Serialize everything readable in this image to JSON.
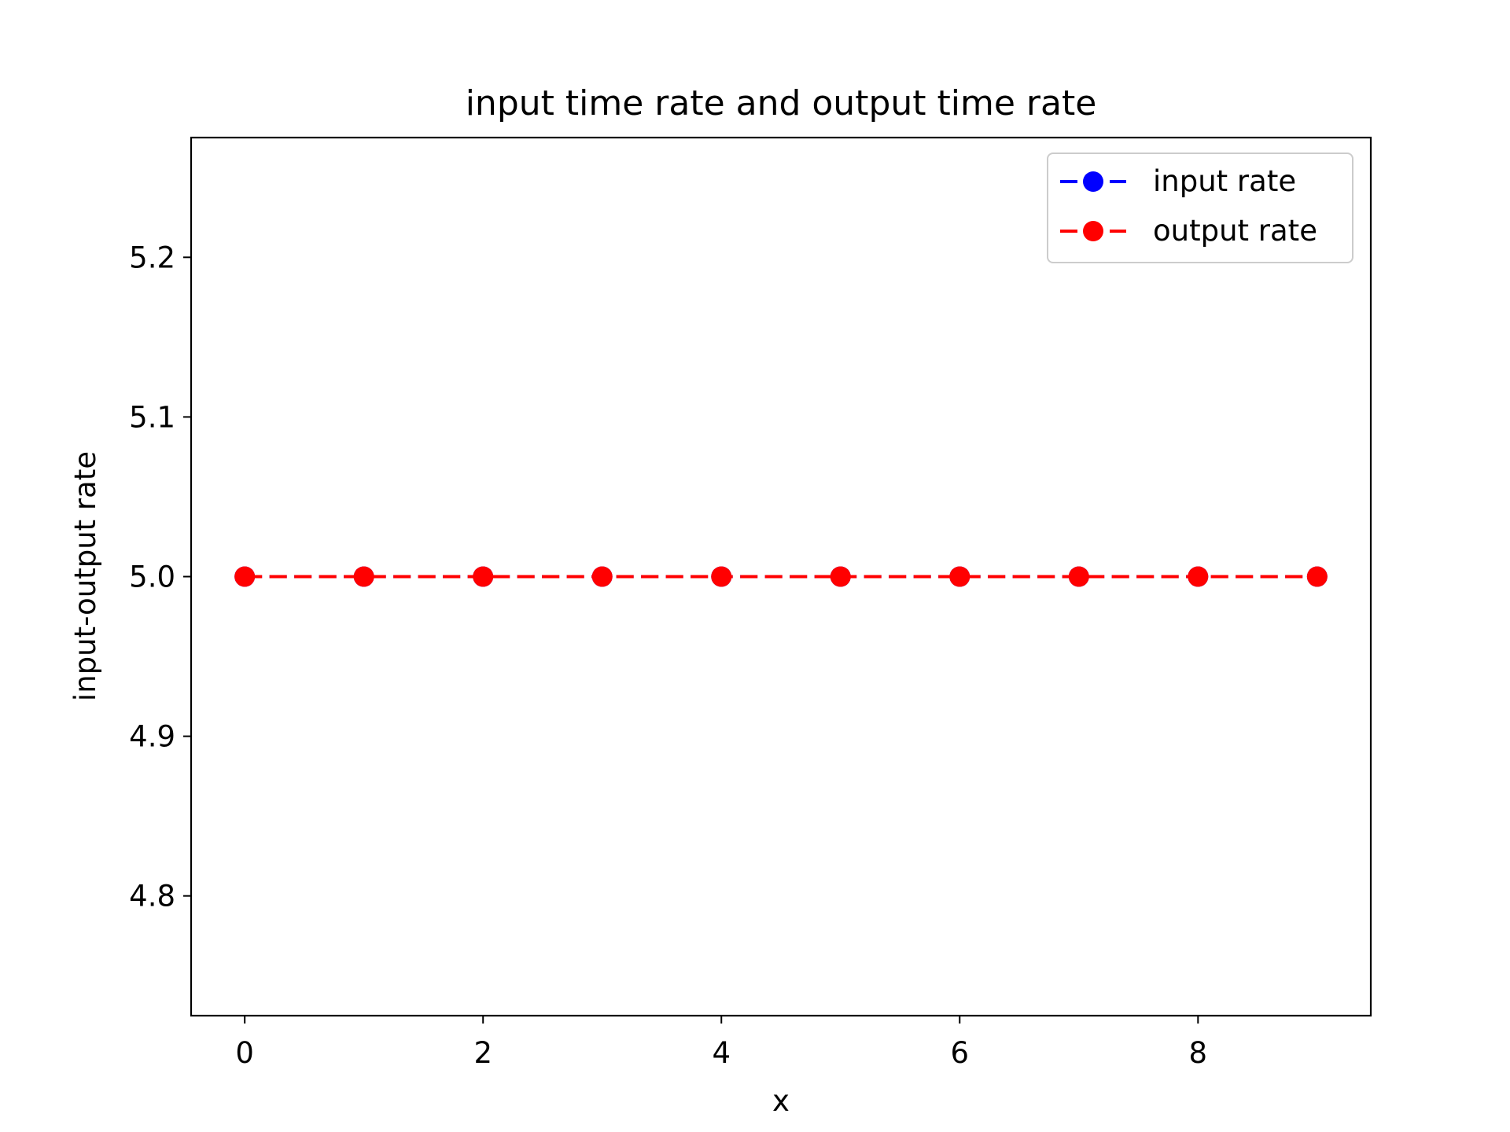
{
  "chart_data": {
    "type": "line",
    "title": "input time rate and output time rate",
    "xlabel": "x",
    "ylabel": "input-output rate",
    "xlim": [
      -0.45,
      9.45
    ],
    "ylim": [
      4.725,
      5.275
    ],
    "xticks": [
      0,
      2,
      4,
      6,
      8
    ],
    "xtick_labels": [
      "0",
      "2",
      "4",
      "6",
      "8"
    ],
    "yticks": [
      4.8,
      4.9,
      5.0,
      5.1,
      5.2
    ],
    "ytick_labels": [
      "4.8",
      "4.9",
      "5.0",
      "5.1",
      "5.2"
    ],
    "grid": false,
    "legend_position": "top-right",
    "x": [
      0,
      1,
      2,
      3,
      4,
      5,
      6,
      7,
      8,
      9
    ],
    "series": [
      {
        "name": "input rate",
        "values": [
          5.0,
          5.0,
          5.0,
          5.0,
          5.0,
          5.0,
          5.0,
          5.0,
          5.0,
          5.0
        ],
        "color": "#0000ff",
        "linestyle": "dashed",
        "marker": "circle"
      },
      {
        "name": "output rate",
        "values": [
          5.0,
          5.0,
          5.0,
          5.0,
          5.0,
          5.0,
          5.0,
          5.0,
          5.0,
          5.0
        ],
        "color": "#ff0000",
        "linestyle": "dashed",
        "marker": "circle"
      }
    ]
  }
}
